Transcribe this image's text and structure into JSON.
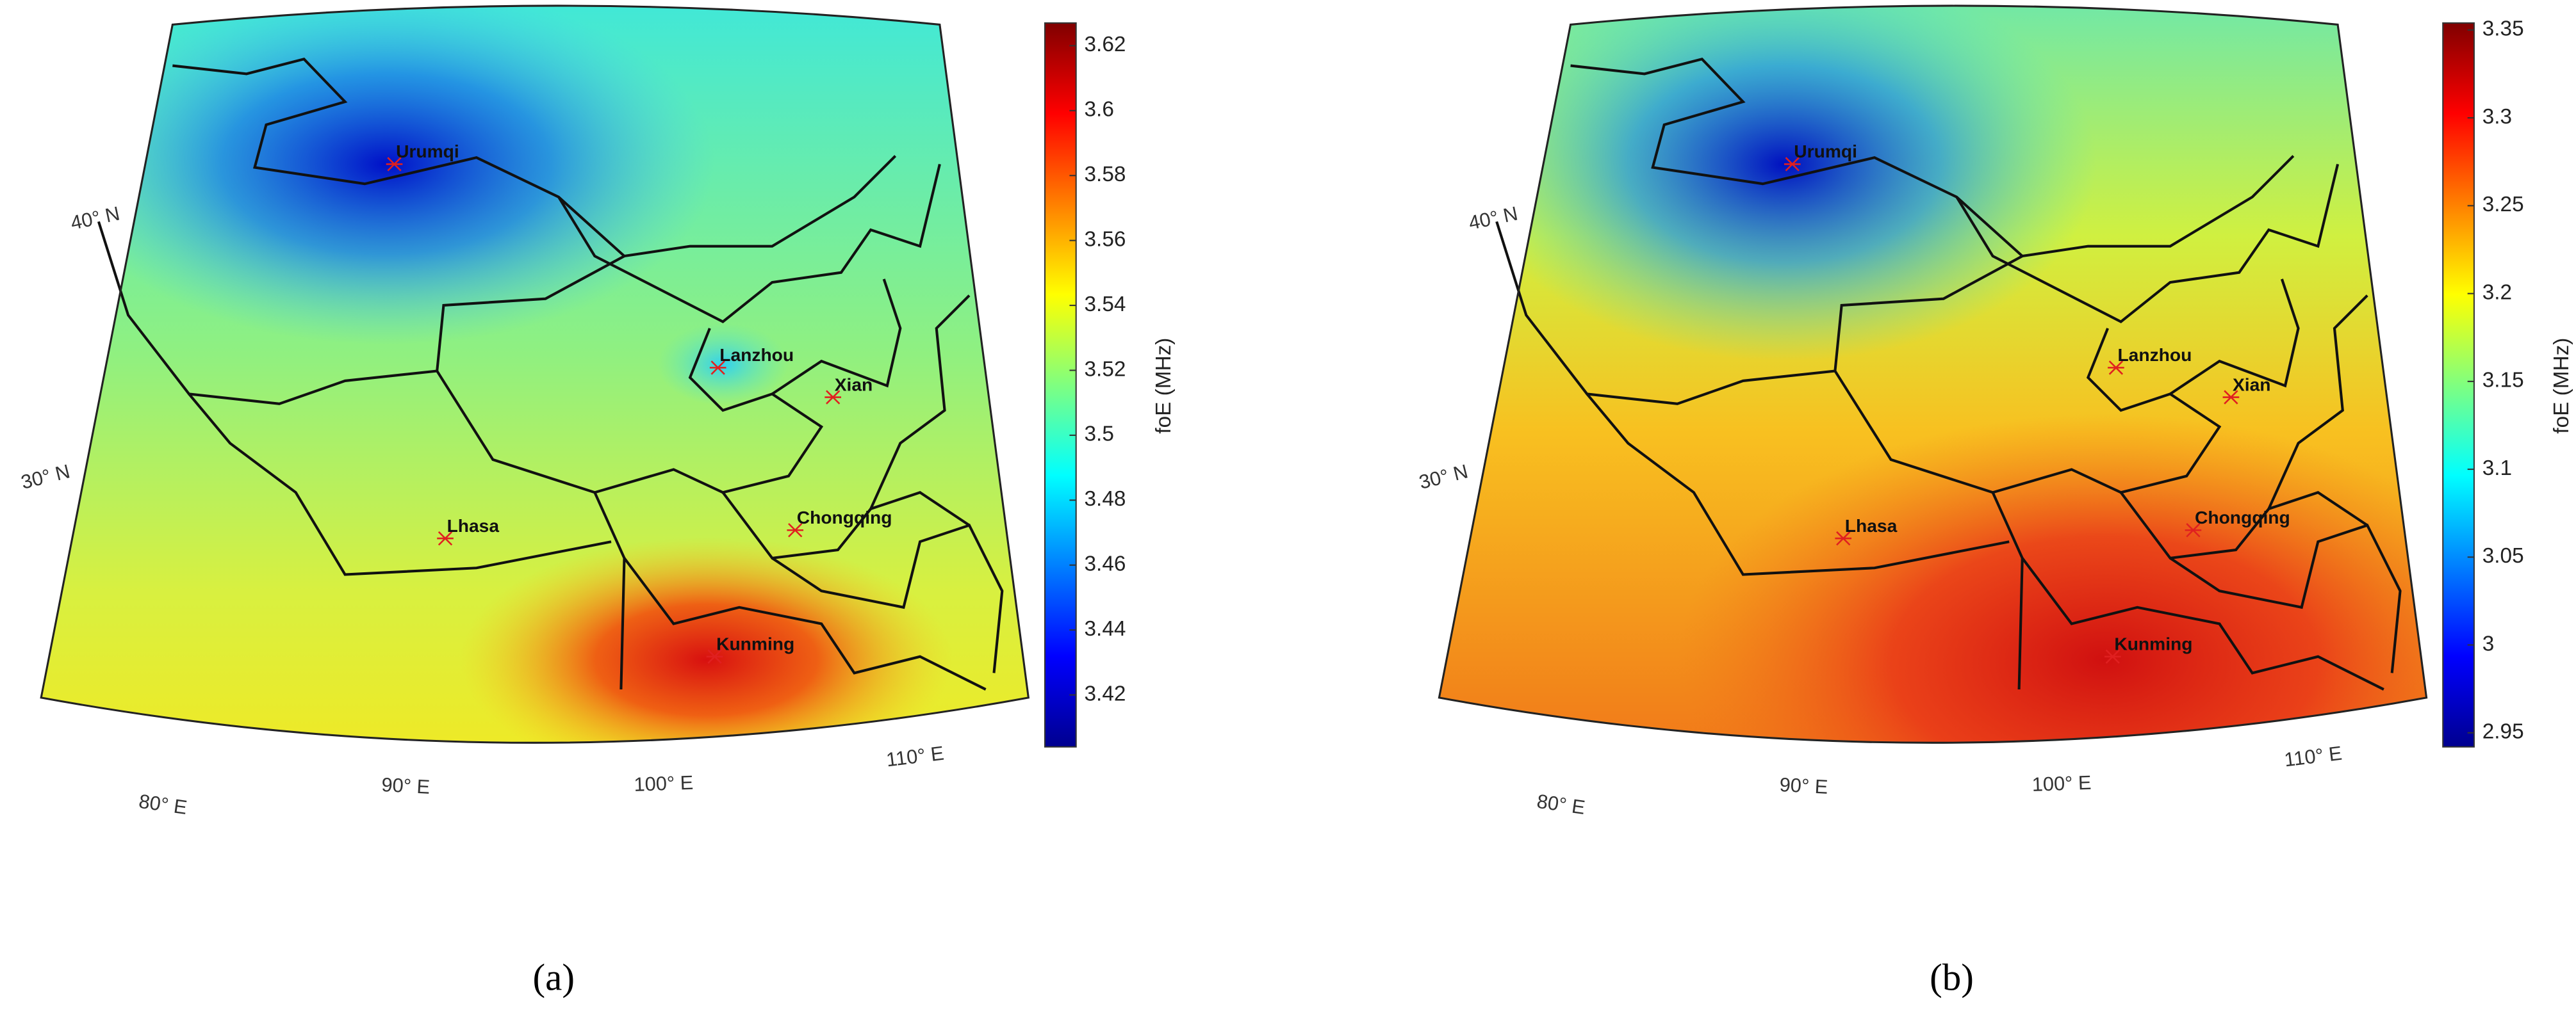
{
  "panels": [
    {
      "caption": "(a)",
      "cities": [
        "Urumqi",
        "Lanzhou",
        "Xian",
        "Chongqing",
        "Lhasa",
        "Kunming"
      ],
      "lat_labels": [
        "40° N",
        "30° N"
      ],
      "lon_labels": [
        "80° E",
        "90° E",
        "100° E",
        "110° E"
      ],
      "colorbar": {
        "label": "foE (MHz)",
        "lim": [
          3.404,
          3.627
        ],
        "ticks": [
          3.42,
          3.44,
          3.46,
          3.48,
          3.5,
          3.52,
          3.54,
          3.56,
          3.58,
          3.6,
          3.62
        ]
      }
    },
    {
      "caption": "(b)",
      "cities": [
        "Urumqi",
        "Lanzhou",
        "Xian",
        "Chongqing",
        "Lhasa",
        "Kunming"
      ],
      "lat_labels": [
        "40° N",
        "30° N"
      ],
      "lon_labels": [
        "80° E",
        "90° E",
        "100° E",
        "110° E"
      ],
      "colorbar": {
        "label": "foE (MHz)",
        "lim": [
          2.942,
          3.354
        ],
        "ticks": [
          2.95,
          3,
          3.05,
          3.1,
          3.15,
          3.2,
          3.25,
          3.3,
          3.35
        ]
      }
    }
  ]
}
